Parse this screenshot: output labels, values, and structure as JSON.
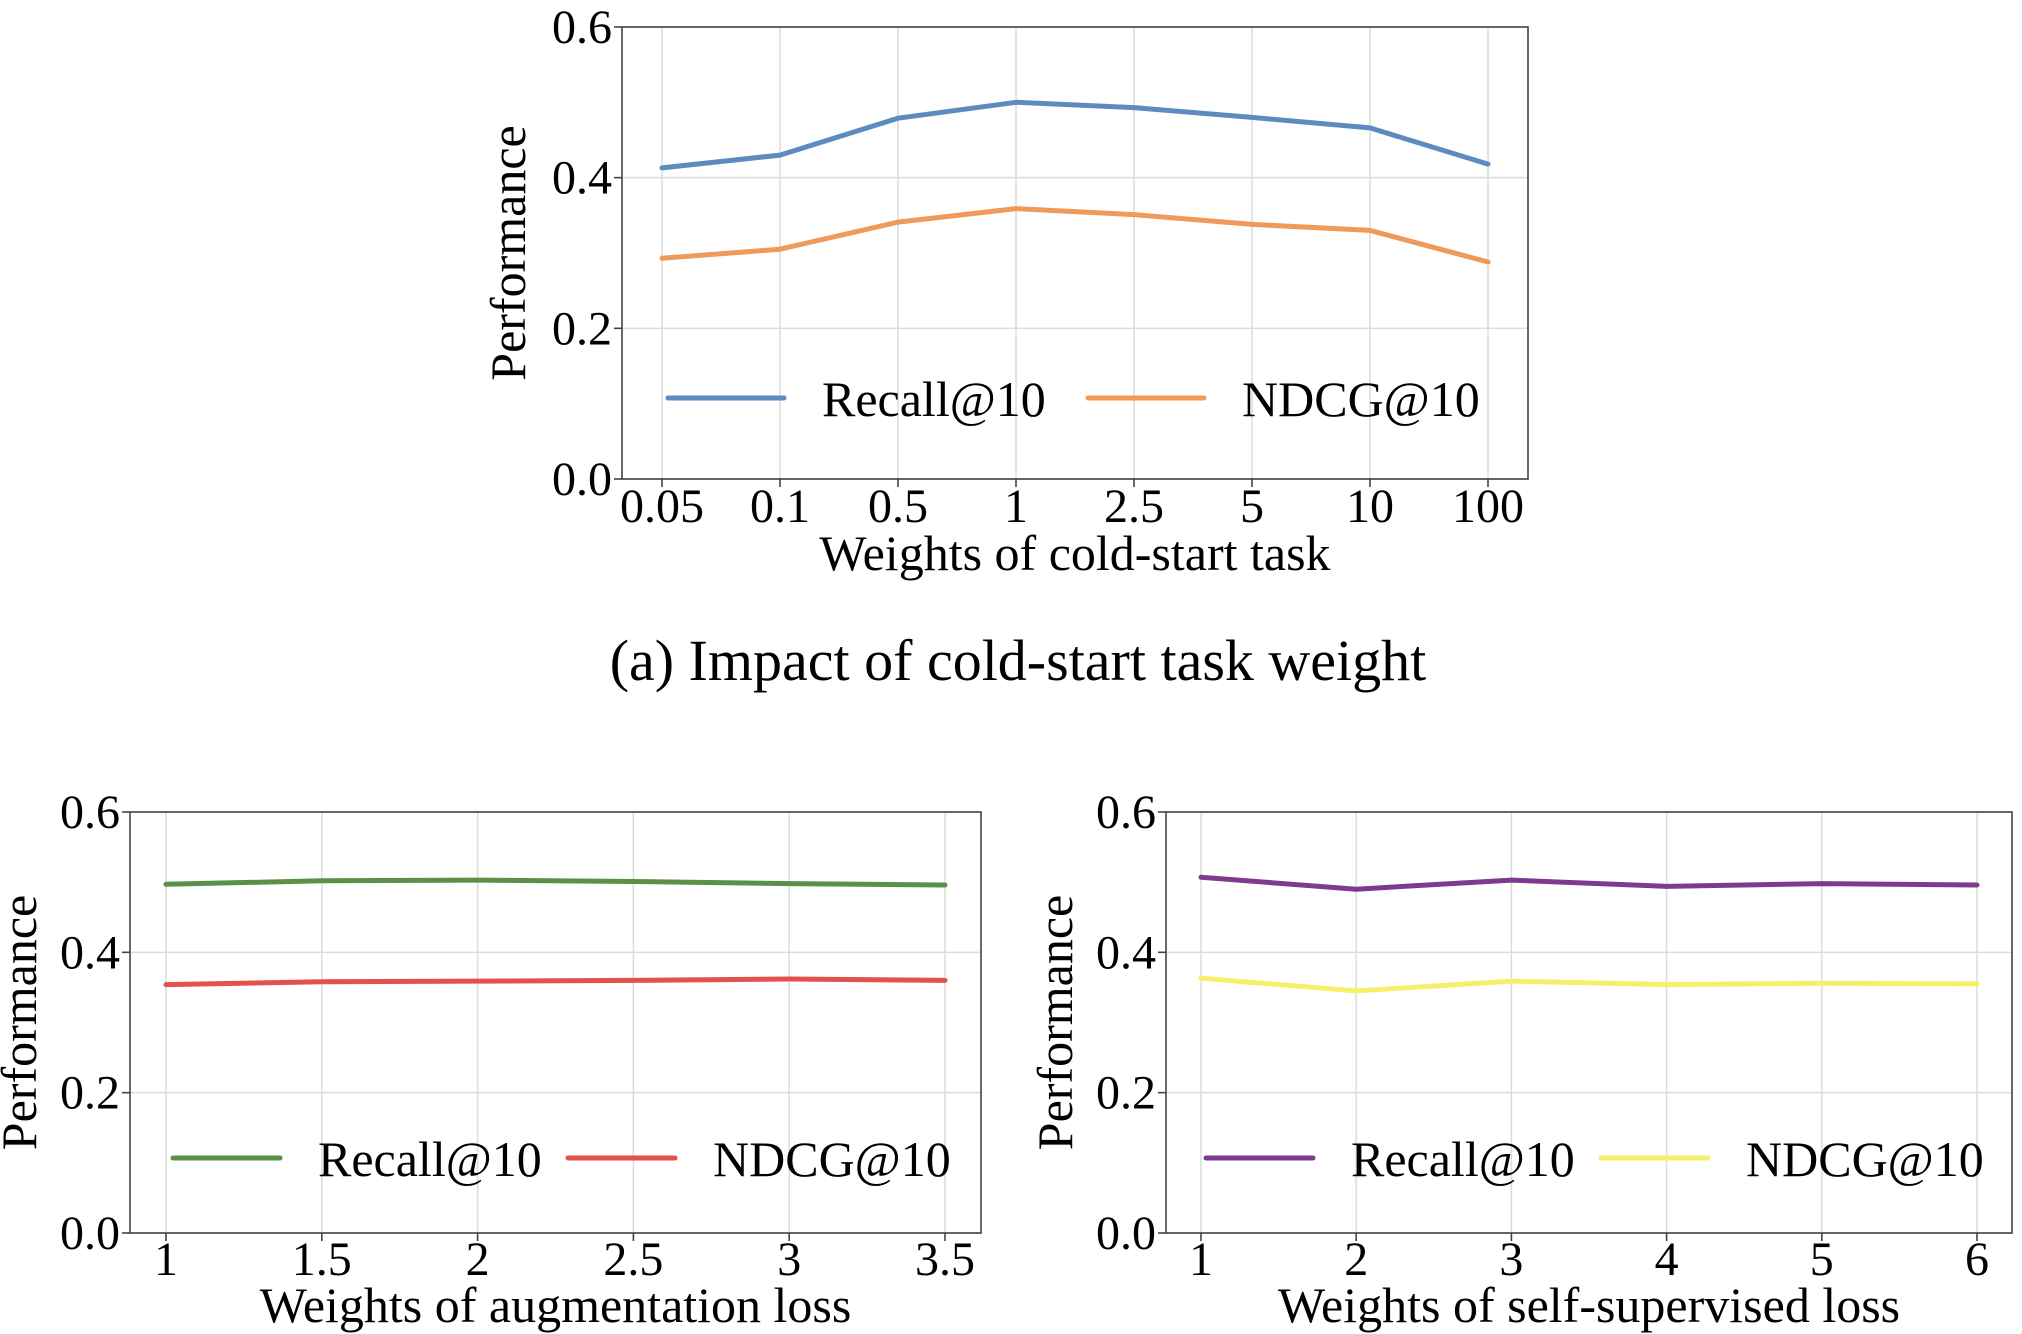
{
  "chart_data": [
    {
      "type": "line",
      "categories": [
        "0.05",
        "0.1",
        "0.5",
        "1",
        "2.5",
        "5",
        "10",
        "100"
      ],
      "series": [
        {
          "name": "Recall@10",
          "color": "#5b8bbf",
          "values": [
            0.413,
            0.43,
            0.479,
            0.5,
            0.493,
            0.48,
            0.466,
            0.418
          ]
        },
        {
          "name": "NDCG@10",
          "color": "#ee9a5a",
          "values": [
            0.293,
            0.305,
            0.341,
            0.359,
            0.351,
            0.338,
            0.33,
            0.288
          ]
        }
      ],
      "ylim": [
        0,
        0.6
      ],
      "yticks": [
        "0.0",
        "0.2",
        "0.4",
        "0.6"
      ],
      "xlabel": "Weights of cold-start task",
      "ylabel": "Performance",
      "caption": "(a)  Impact of cold-start task weight",
      "grid": true,
      "legend": "lower center"
    },
    {
      "type": "line",
      "categories": [
        "1",
        "1.5",
        "2",
        "2.5",
        "3",
        "3.5"
      ],
      "series": [
        {
          "name": "Recall@10",
          "color": "#5a9147",
          "values": [
            0.497,
            0.502,
            0.503,
            0.501,
            0.498,
            0.496
          ]
        },
        {
          "name": "NDCG@10",
          "color": "#e0524a",
          "values": [
            0.354,
            0.358,
            0.359,
            0.36,
            0.362,
            0.36
          ]
        }
      ],
      "ylim": [
        0,
        0.6
      ],
      "yticks": [
        "0.0",
        "0.2",
        "0.4",
        "0.6"
      ],
      "xlabel": "Weights of augmentation loss",
      "ylabel": "Performance",
      "grid": true,
      "legend": "lower center"
    },
    {
      "type": "line",
      "categories": [
        "1",
        "2",
        "3",
        "4",
        "5",
        "6"
      ],
      "series": [
        {
          "name": "Recall@10",
          "color": "#7f3a8d",
          "values": [
            0.507,
            0.49,
            0.503,
            0.494,
            0.498,
            0.496
          ]
        },
        {
          "name": "NDCG@10",
          "color": "#f4f06a",
          "values": [
            0.363,
            0.345,
            0.359,
            0.354,
            0.356,
            0.355
          ]
        }
      ],
      "ylim": [
        0,
        0.6
      ],
      "yticks": [
        "0.0",
        "0.2",
        "0.4",
        "0.6"
      ],
      "xlabel": "Weights of self-supervised loss",
      "ylabel": "Performance",
      "grid": true,
      "legend": "lower center"
    }
  ]
}
